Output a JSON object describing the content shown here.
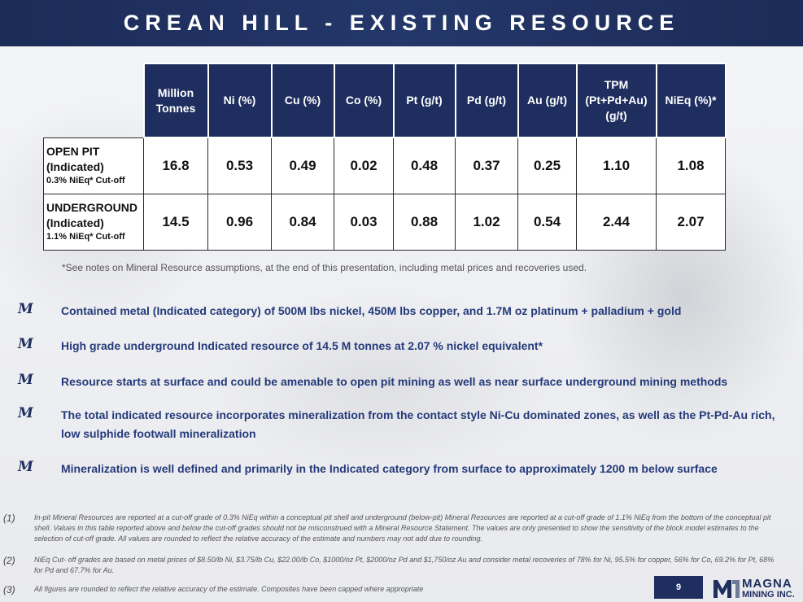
{
  "header": {
    "title": "CREAN HILL - EXISTING RESOURCE"
  },
  "table": {
    "headers": [
      "Million Tonnes",
      "Ni (%)",
      "Cu (%)",
      "Co (%)",
      "Pt (g/t)",
      "Pd (g/t)",
      "Au (g/t)",
      "TPM (Pt+Pd+Au) (g/t)",
      "NiEq (%)*"
    ],
    "rows": [
      {
        "label": "OPEN PIT",
        "category": "(Indicated)",
        "cutoff": "0.3% NiEq* Cut-off",
        "values": [
          "16.8",
          "0.53",
          "0.49",
          "0.02",
          "0.48",
          "0.37",
          "0.25",
          "1.10",
          "1.08"
        ]
      },
      {
        "label": "UNDERGROUND",
        "category": "(Indicated)",
        "cutoff": "1.1% NiEq* Cut-off",
        "values": [
          "14.5",
          "0.96",
          "0.84",
          "0.03",
          "0.88",
          "1.02",
          "0.54",
          "2.44",
          "2.07"
        ]
      }
    ]
  },
  "note": "*See notes on Mineral Resource assumptions, at the end of this presentation, including metal prices and recoveries used.",
  "bullet_marker": "M",
  "bullets": [
    "Contained metal (Indicated category) of 500M lbs nickel, 450M lbs copper, and 1.7M oz platinum + palladium + gold",
    "High grade underground Indicated resource of 14.5 M tonnes at 2.07 % nickel equivalent*",
    "Resource starts at surface and could be amenable to open pit mining as well as near surface underground mining methods",
    "The total indicated resource incorporates mineralization from the contact style Ni-Cu dominated zones, as well as the Pt-Pd-Au rich, low sulphide footwall mineralization",
    "Mineralization is well defined and primarily in the Indicated category from surface to approximately 1200 m below surface"
  ],
  "footnotes": [
    {
      "num": "(1)",
      "text": "In-pit Mineral Resources are reported at a cut-off grade of 0.3% NiEq within a conceptual pit shell and underground (below-pit) Mineral Resources are reported at a cut-off grade of 1.1% NiEq from the bottom of the conceptual pit shell. Values in this table reported above and below the cut-off grades should not be misconstrued with a Mineral Resource Statement. The values are only presented to show the sensitivity of the block model estimates to the selection of cut-off grade. All values are rounded to reflect the relative accuracy of the estimate and numbers may not add due to rounding."
    },
    {
      "num": "(2)",
      "text": "NiEq Cut- off grades are based on metal prices of $8.50/lb Ni, $3.75/lb Cu, $22.00/lb Co, $1000/oz Pt, $2000/oz Pd and $1,750/oz Au and consider metal recoveries of 78% for Ni, 95.5% for copper, 56% for Co, 69.2% for Pt, 68% for Pd and 67.7% for Au."
    },
    {
      "num": "(3)",
      "text": "All figures are rounded to reflect the relative accuracy of the estimate. Composites have been capped where appropriate"
    }
  ],
  "page_number": "9",
  "logo": {
    "line1": "MAGNA",
    "line2": "MINING INC."
  },
  "colors": {
    "navy": "#1e2e5f",
    "bullet_text": "#243a7a"
  }
}
